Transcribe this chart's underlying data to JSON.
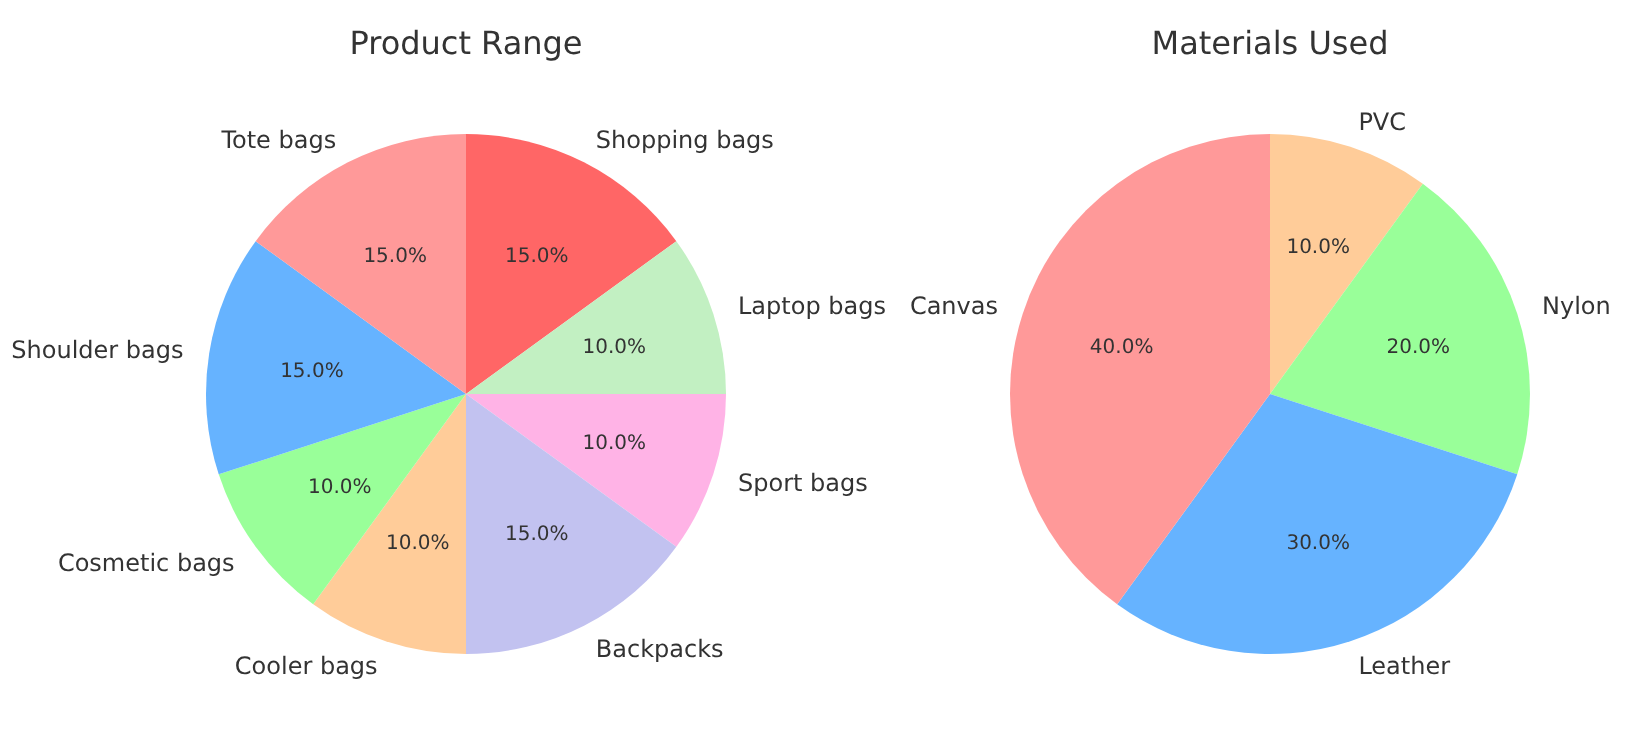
{
  "chart_data": [
    {
      "type": "pie",
      "title": "Product Range",
      "categories": [
        "Shopping bags",
        "Laptop bags",
        "Sport bags",
        "Backpacks",
        "Cooler bags",
        "Cosmetic bags",
        "Shoulder bags",
        "Tote bags"
      ],
      "values": [
        15,
        10,
        10,
        15,
        10,
        10,
        15,
        15
      ],
      "value_labels": [
        "15.0%",
        "10.0%",
        "10.0%",
        "15.0%",
        "10.0%",
        "10.0%",
        "15.0%",
        "15.0%"
      ],
      "colors": [
        "#ff6666",
        "#c2f0c2",
        "#ffb3e6",
        "#c2c2f0",
        "#ffcc99",
        "#99ff99",
        "#66b3ff",
        "#ff9999"
      ]
    },
    {
      "type": "pie",
      "title": "Materials Used",
      "categories": [
        "PVC",
        "Nylon",
        "Leather",
        "Canvas"
      ],
      "values": [
        10,
        20,
        30,
        40
      ],
      "value_labels": [
        "10.0%",
        "20.0%",
        "30.0%",
        "40.0%"
      ],
      "colors": [
        "#ffcc99",
        "#99ff99",
        "#66b3ff",
        "#ff9999"
      ]
    }
  ]
}
